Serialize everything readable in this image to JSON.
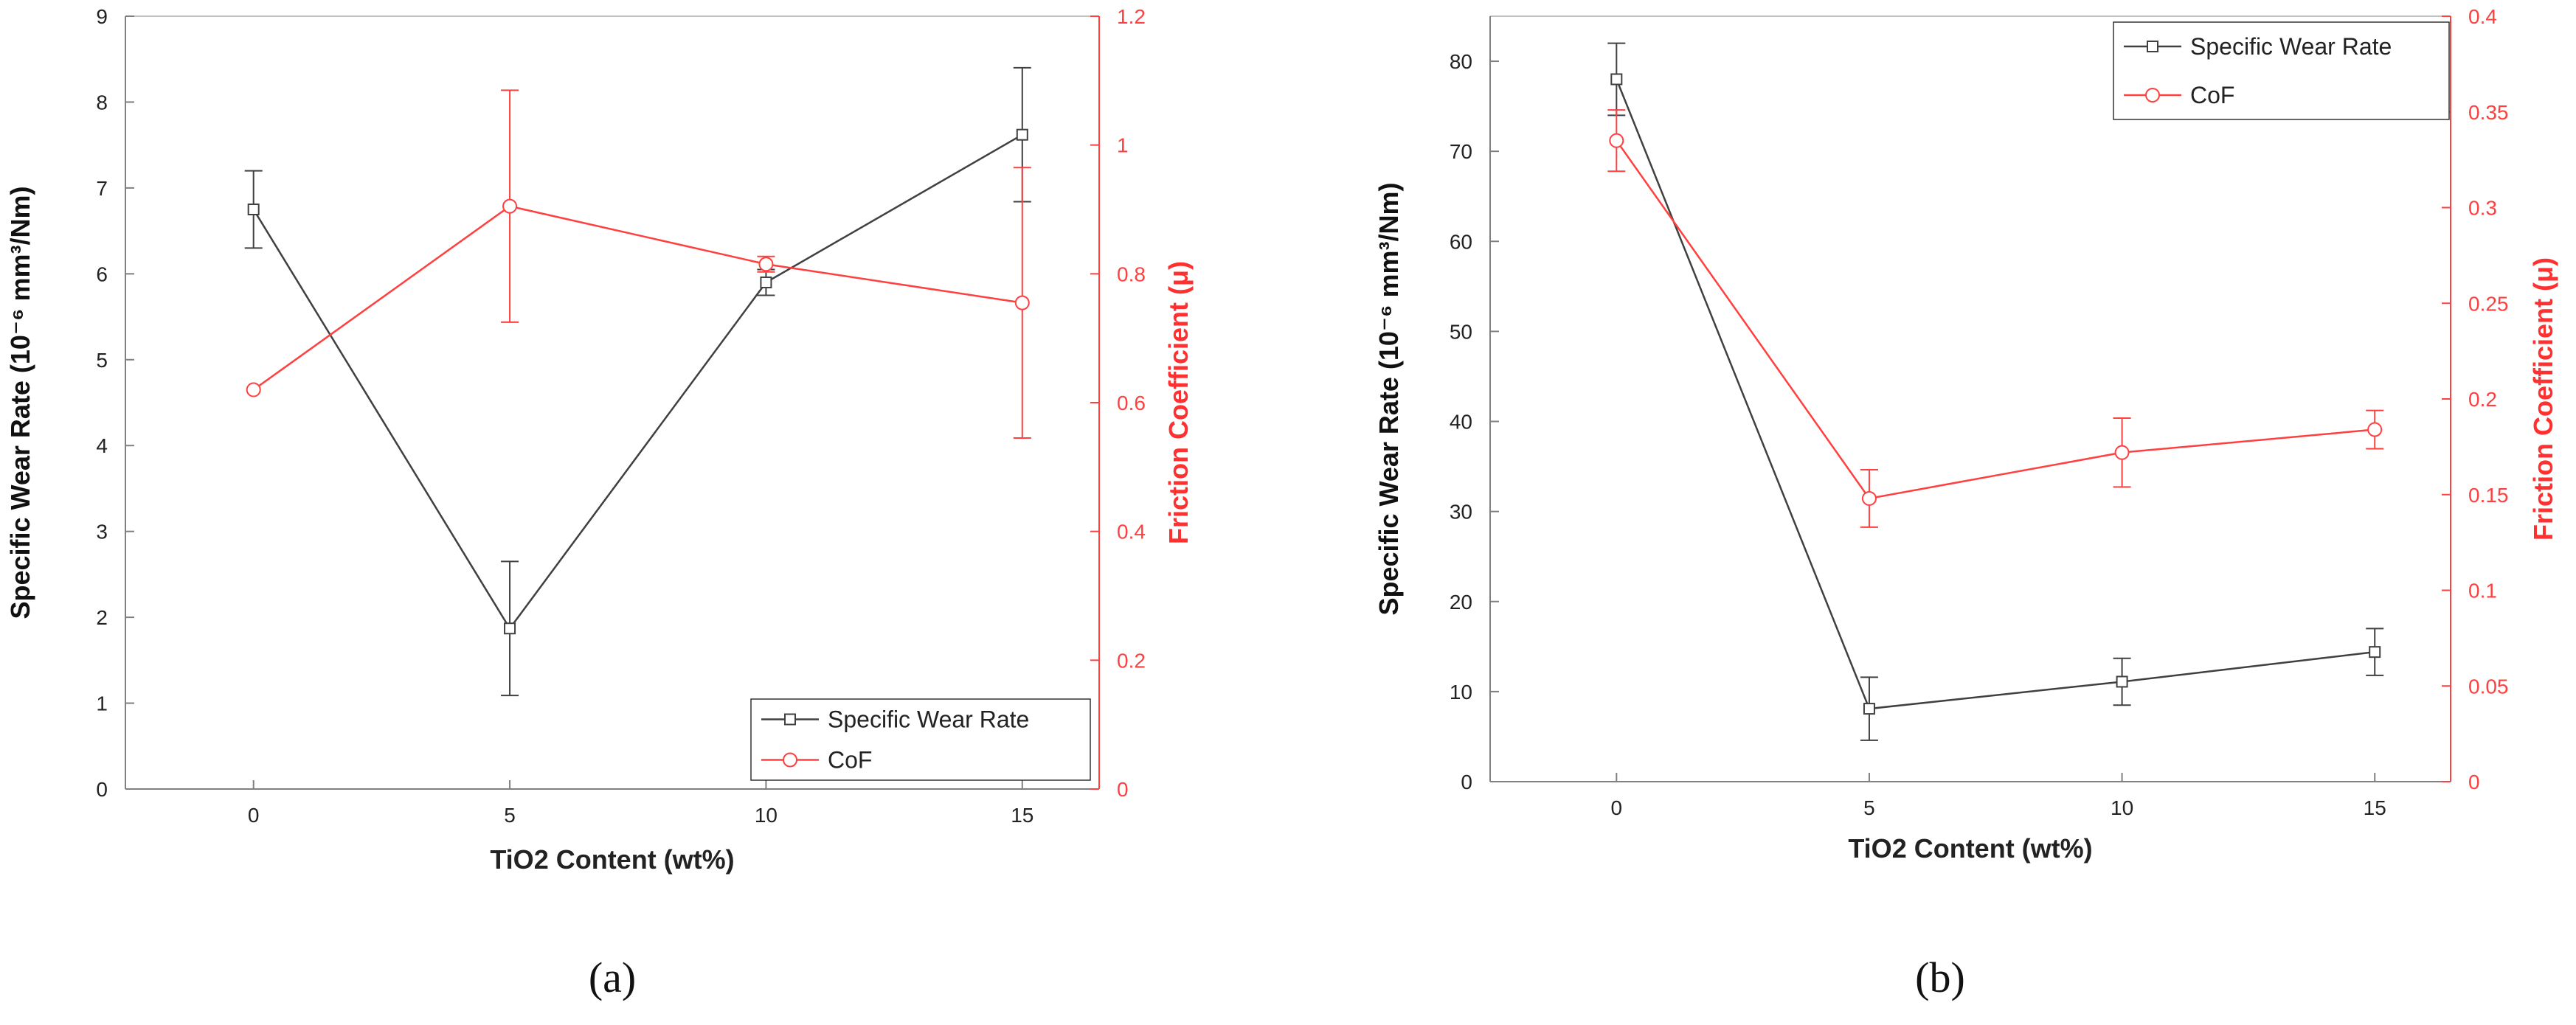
{
  "chart_data": [
    {
      "type": "line",
      "panel_label": "(a)",
      "xlabel": "TiO2 Content (wt%)",
      "ylabel_left": "Specific Wear Rate (10⁻⁶ mm³/Nm)",
      "ylabel_right": "Friction Coefficient (μ)",
      "x": [
        0,
        5,
        10,
        15
      ],
      "xlim": [
        -2.5,
        16.5
      ],
      "xticks": [
        "0",
        "5",
        "10",
        "15"
      ],
      "ylim_left": [
        0,
        9
      ],
      "yticks_left": [
        "0",
        "1",
        "2",
        "3",
        "4",
        "5",
        "6",
        "7",
        "8",
        "9"
      ],
      "ylim_right": [
        0,
        1.2
      ],
      "yticks_right": [
        "0",
        "0.2",
        "0.4",
        "0.6",
        "0.8",
        "1",
        "1.2"
      ],
      "legend_position": "lower-right",
      "series": [
        {
          "name": "Specific Wear Rate",
          "axis": "left",
          "color": "#404040",
          "marker": "square",
          "values": [
            6.75,
            1.87,
            5.9,
            7.62
          ],
          "err": [
            0.45,
            0.78,
            0.15,
            0.78
          ]
        },
        {
          "name": "CoF",
          "axis": "right",
          "color": "#ff4040",
          "marker": "circle",
          "values": [
            0.62,
            0.905,
            0.815,
            0.755
          ],
          "err": [
            0.0,
            0.18,
            0.012,
            0.21
          ]
        }
      ]
    },
    {
      "type": "line",
      "panel_label": "(b)",
      "xlabel": "TiO2 Content (wt%)",
      "ylabel_left": "Specific Wear Rate (10⁻⁶ mm³/Nm)",
      "ylabel_right": "Friction Coefficient (μ)",
      "x": [
        0,
        5,
        10,
        15
      ],
      "xlim": [
        -2.5,
        16.5
      ],
      "xticks": [
        "0",
        "5",
        "10",
        "15"
      ],
      "ylim_left": [
        0,
        85
      ],
      "yticks_left": [
        "0",
        "10",
        "20",
        "30",
        "40",
        "50",
        "60",
        "70",
        "80"
      ],
      "ylim_right": [
        0,
        0.4
      ],
      "yticks_right": [
        "0",
        "0.05",
        "0.1",
        "0.15",
        "0.2",
        "0.25",
        "0.3",
        "0.35",
        "0.4"
      ],
      "legend_position": "top-right",
      "series": [
        {
          "name": "Specific Wear Rate",
          "axis": "left",
          "color": "#404040",
          "marker": "square",
          "values": [
            78,
            8.1,
            11.1,
            14.4
          ],
          "err": [
            4.0,
            3.5,
            2.6,
            2.6
          ]
        },
        {
          "name": "CoF",
          "axis": "right",
          "color": "#ff4040",
          "marker": "circle",
          "values": [
            0.335,
            0.148,
            0.172,
            0.184
          ],
          "err": [
            0.016,
            0.015,
            0.018,
            0.01
          ]
        }
      ]
    }
  ]
}
